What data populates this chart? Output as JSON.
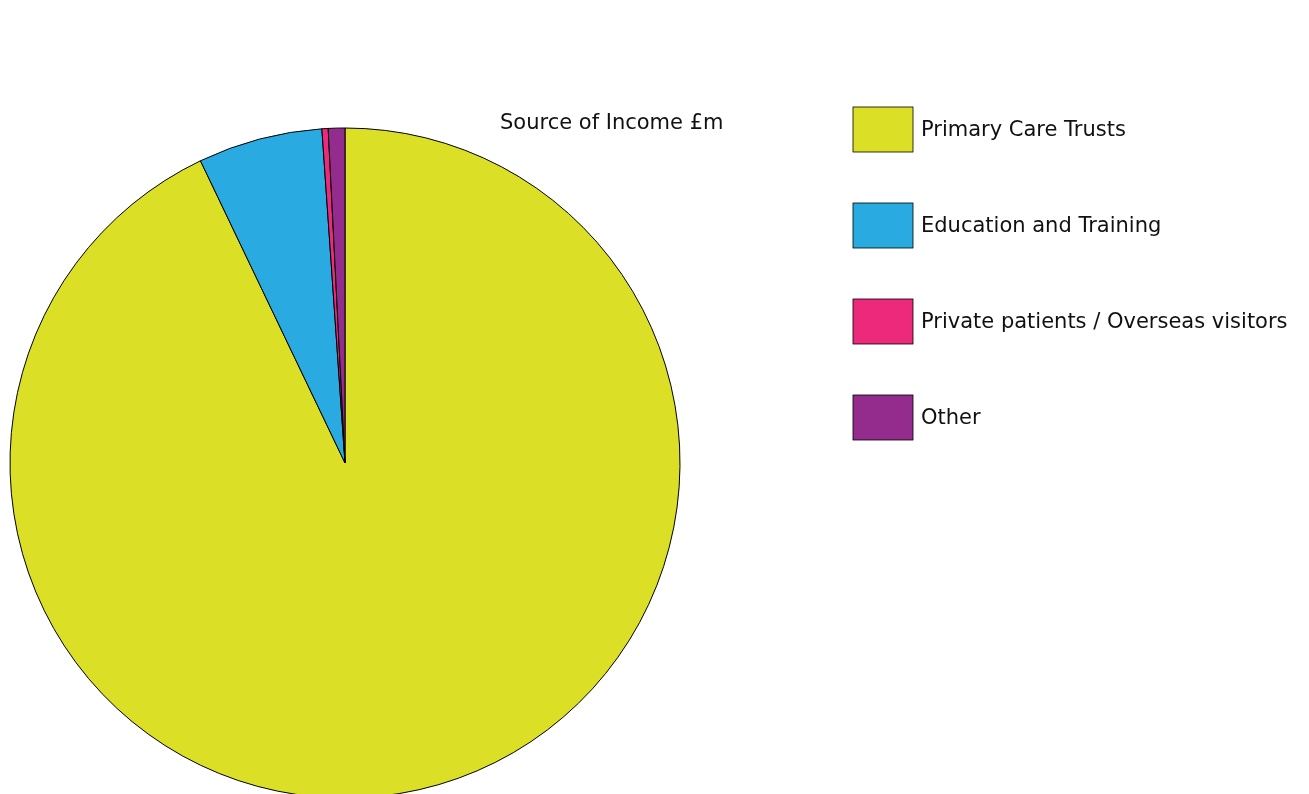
{
  "chart_data": {
    "type": "pie",
    "title": "Source of Income £m",
    "categories": [
      "Primary Care Trusts",
      "Education and Training",
      "Private patients / Overseas visitors",
      "Other"
    ],
    "values": [
      92.9,
      6.0,
      0.3,
      0.8
    ],
    "colors": [
      "#dbe026",
      "#29abe2",
      "#ec297b",
      "#932c8c"
    ],
    "legend": "right"
  }
}
